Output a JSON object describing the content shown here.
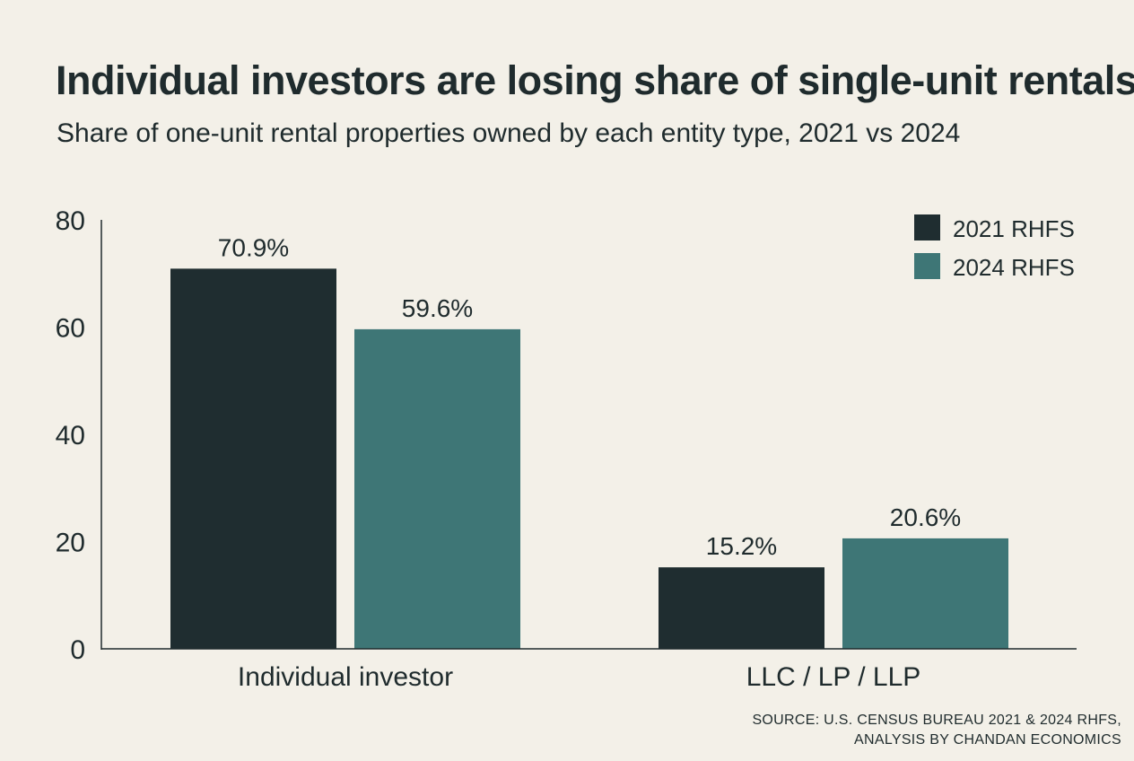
{
  "header": {
    "title": "Individual investors are losing share of single-unit rentals",
    "subtitle": "Share of one-unit rental properties owned by each entity type, 2021 vs 2024"
  },
  "chart_data": {
    "type": "bar",
    "categories": [
      "Individual investor",
      "LLC / LP / LLP"
    ],
    "series": [
      {
        "name": "2021 RHFS",
        "values": [
          70.9,
          15.2
        ],
        "color": "#1f2d30"
      },
      {
        "name": "2024 RHFS",
        "values": [
          59.6,
          20.6
        ],
        "color": "#3e7676"
      }
    ],
    "data_labels": [
      [
        "70.9%",
        "15.2%"
      ],
      [
        "59.6%",
        "20.6%"
      ]
    ],
    "ylim": [
      0,
      80
    ],
    "yticks": [
      0,
      20,
      40,
      60,
      80
    ],
    "grid": false,
    "legend": "top-right"
  },
  "source": {
    "line1": "SOURCE: U.S. CENSUS BUREAU 2021 & 2024 RHFS,",
    "line2": "ANALYSIS BY CHANDAN ECONOMICS"
  }
}
